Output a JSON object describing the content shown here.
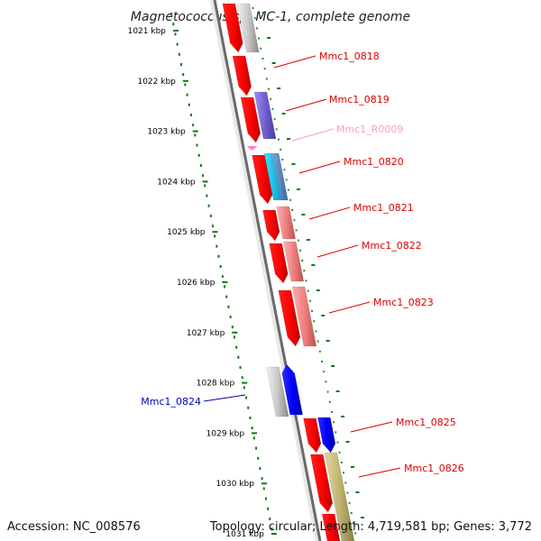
{
  "title": "Magnetococcus sp. MC-1, complete genome",
  "accession": "Accession: NC_008576",
  "topology": "Topology: circular; Length: 4,719,581 bp; Genes: 3,772",
  "colors": {
    "backbone": "#777777",
    "ruler_dots": "#0a7a0a",
    "gene_label_red": "#dd0000",
    "gene_label_blue": "#0000bb",
    "gene_label_pink": "#ff99cc"
  },
  "ruler": [
    "1021 kbp",
    "1022 kbp",
    "1023 kbp",
    "1024 kbp",
    "1025 kbp",
    "1026 kbp",
    "1027 kbp",
    "1028 kbp",
    "1029 kbp",
    "1030 kbp",
    "1031 kbp"
  ],
  "gene_labels": [
    {
      "text": "Mmc1_0818",
      "color": "#dd0000"
    },
    {
      "text": "Mmc1_0819",
      "color": "#dd0000"
    },
    {
      "text": "Mmc1_R0009",
      "color": "#ff99cc"
    },
    {
      "text": "Mmc1_0820",
      "color": "#dd0000"
    },
    {
      "text": "Mmc1_0821",
      "color": "#dd0000"
    },
    {
      "text": "Mmc1_0822",
      "color": "#dd0000"
    },
    {
      "text": "Mmc1_0823",
      "color": "#dd0000"
    },
    {
      "text": "Mmc1_0824",
      "color": "#0000bb"
    },
    {
      "text": "Mmc1_0825",
      "color": "#dd0000"
    },
    {
      "text": "Mmc1_0826",
      "color": "#dd0000"
    }
  ]
}
